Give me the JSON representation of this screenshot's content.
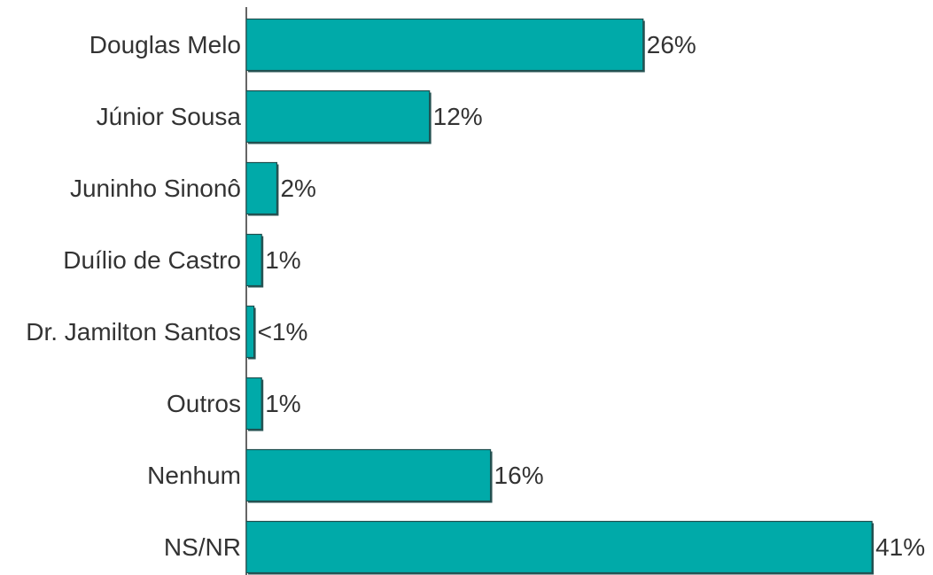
{
  "chart_data": {
    "type": "barh",
    "categories": [
      "Douglas Melo",
      "Júnior Sousa",
      "Juninho Sinonô",
      "Duílio de Castro",
      "Dr. Jamilton Santos",
      "Outros",
      "Nenhum",
      "NS/NR"
    ],
    "values": [
      26,
      12,
      2,
      1,
      0.5,
      1,
      16,
      41
    ],
    "value_labels": [
      "26%",
      "12%",
      "2%",
      "1%",
      "<1%",
      "1%",
      "16%",
      "41%"
    ],
    "color": "#00aaa9",
    "xlim": [
      0,
      45
    ]
  }
}
